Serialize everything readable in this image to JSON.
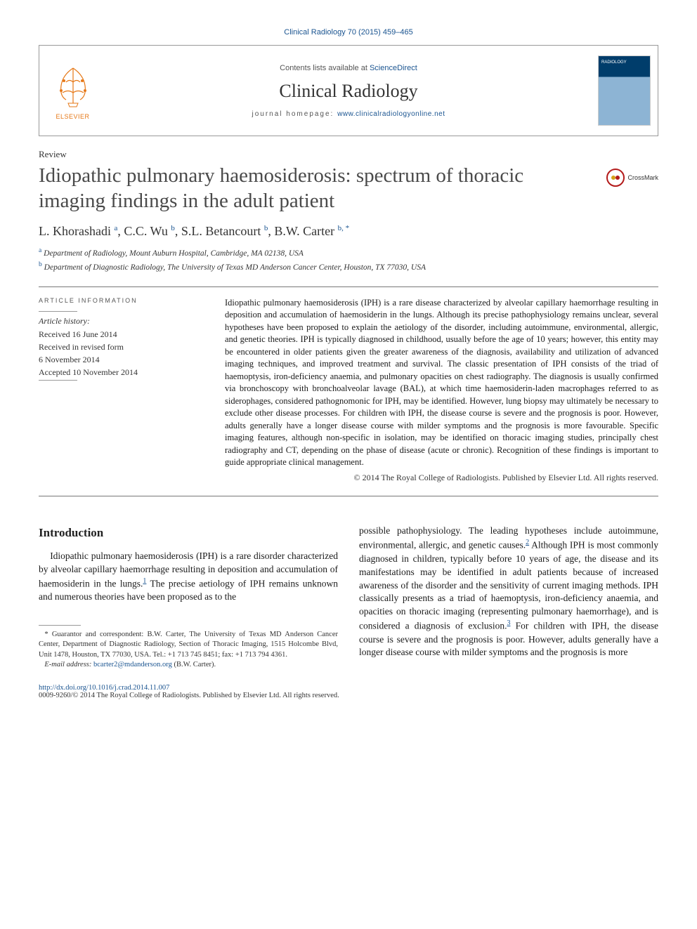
{
  "citation": "Clinical Radiology 70 (2015) 459–465",
  "header": {
    "contents_prefix": "Contents lists available at ",
    "contents_link": "ScienceDirect",
    "journal_name": "Clinical Radiology",
    "homepage_prefix": "journal homepage: ",
    "homepage_url": "www.clinicalradiologyonline.net",
    "publisher": "ELSEVIER"
  },
  "article_type": "Review",
  "title": "Idiopathic pulmonary haemosiderosis: spectrum of thoracic imaging findings in the adult patient",
  "crossmark": "CrossMark",
  "authors_html": "L. Khorashadi",
  "authors": [
    {
      "name": "L. Khorashadi",
      "aff": "a"
    },
    {
      "name": "C.C. Wu",
      "aff": "b"
    },
    {
      "name": "S.L. Betancourt",
      "aff": "b"
    },
    {
      "name": "B.W. Carter",
      "aff": "b",
      "corr": "*"
    }
  ],
  "affiliations": [
    {
      "sup": "a",
      "text": "Department of Radiology, Mount Auburn Hospital, Cambridge, MA 02138, USA"
    },
    {
      "sup": "b",
      "text": "Department of Diagnostic Radiology, The University of Texas MD Anderson Cancer Center, Houston, TX 77030, USA"
    }
  ],
  "info_heading": "ARTICLE INFORMATION",
  "history_label": "Article history:",
  "history": [
    "Received 16 June 2014",
    "Received in revised form",
    "6 November 2014",
    "Accepted 10 November 2014"
  ],
  "abstract": "Idiopathic pulmonary haemosiderosis (IPH) is a rare disease characterized by alveolar capillary haemorrhage resulting in deposition and accumulation of haemosiderin in the lungs. Although its precise pathophysiology remains unclear, several hypotheses have been proposed to explain the aetiology of the disorder, including autoimmune, environmental, allergic, and genetic theories. IPH is typically diagnosed in childhood, usually before the age of 10 years; however, this entity may be encountered in older patients given the greater awareness of the diagnosis, availability and utilization of advanced imaging techniques, and improved treatment and survival. The classic presentation of IPH consists of the triad of haemoptysis, iron-deficiency anaemia, and pulmonary opacities on chest radiography. The diagnosis is usually confirmed via bronchoscopy with bronchoalveolar lavage (BAL), at which time haemosiderin-laden macrophages referred to as siderophages, considered pathognomonic for IPH, may be identified. However, lung biopsy may ultimately be necessary to exclude other disease processes. For children with IPH, the disease course is severe and the prognosis is poor. However, adults generally have a longer disease course with milder symptoms and the prognosis is more favourable. Specific imaging features, although non-specific in isolation, may be identified on thoracic imaging studies, principally chest radiography and CT, depending on the phase of disease (acute or chronic). Recognition of these findings is important to guide appropriate clinical management.",
  "copyright": "© 2014 The Royal College of Radiologists. Published by Elsevier Ltd. All rights reserved.",
  "intro_heading": "Introduction",
  "intro_col1": "Idiopathic pulmonary haemosiderosis (IPH) is a rare disorder characterized by alveolar capillary haemorrhage resulting in deposition and accumulation of haemosiderin in the lungs.|1| The precise aetiology of IPH remains unknown and numerous theories have been proposed as to the",
  "intro_col2": "possible pathophysiology. The leading hypotheses include autoimmune, environmental, allergic, and genetic causes.|2| Although IPH is most commonly diagnosed in children, typically before 10 years of age, the disease and its manifestations may be identified in adult patients because of increased awareness of the disorder and the sensitivity of current imaging methods. IPH classically presents as a triad of haemoptysis, iron-deficiency anaemia, and opacities on thoracic imaging (representing pulmonary haemorrhage), and is considered a diagnosis of exclusion.|3| For children with IPH, the disease course is severe and the prognosis is poor. However, adults generally have a longer disease course with milder symptoms and the prognosis is more",
  "footnote_corr": "* Guarantor and correspondent: B.W. Carter, The University of Texas MD Anderson Cancer Center, Department of Diagnostic Radiology, Section of Thoracic Imaging, 1515 Holcombe Blvd, Unit 1478, Houston, TX 77030, USA. Tel.: +1 713 745 8451; fax: +1 713 794 4361.",
  "footnote_email_label": "E-mail address:",
  "footnote_email": "bcarter2@mdanderson.org",
  "footnote_email_person": "(B.W. Carter).",
  "doi": "http://dx.doi.org/10.1016/j.crad.2014.11.007",
  "issn_line": "0009-9260/© 2014 The Royal College of Radiologists. Published by Elsevier Ltd. All rights reserved.",
  "colors": {
    "link": "#1a5490",
    "elsevier_orange": "#e67817",
    "rule": "#777777"
  }
}
